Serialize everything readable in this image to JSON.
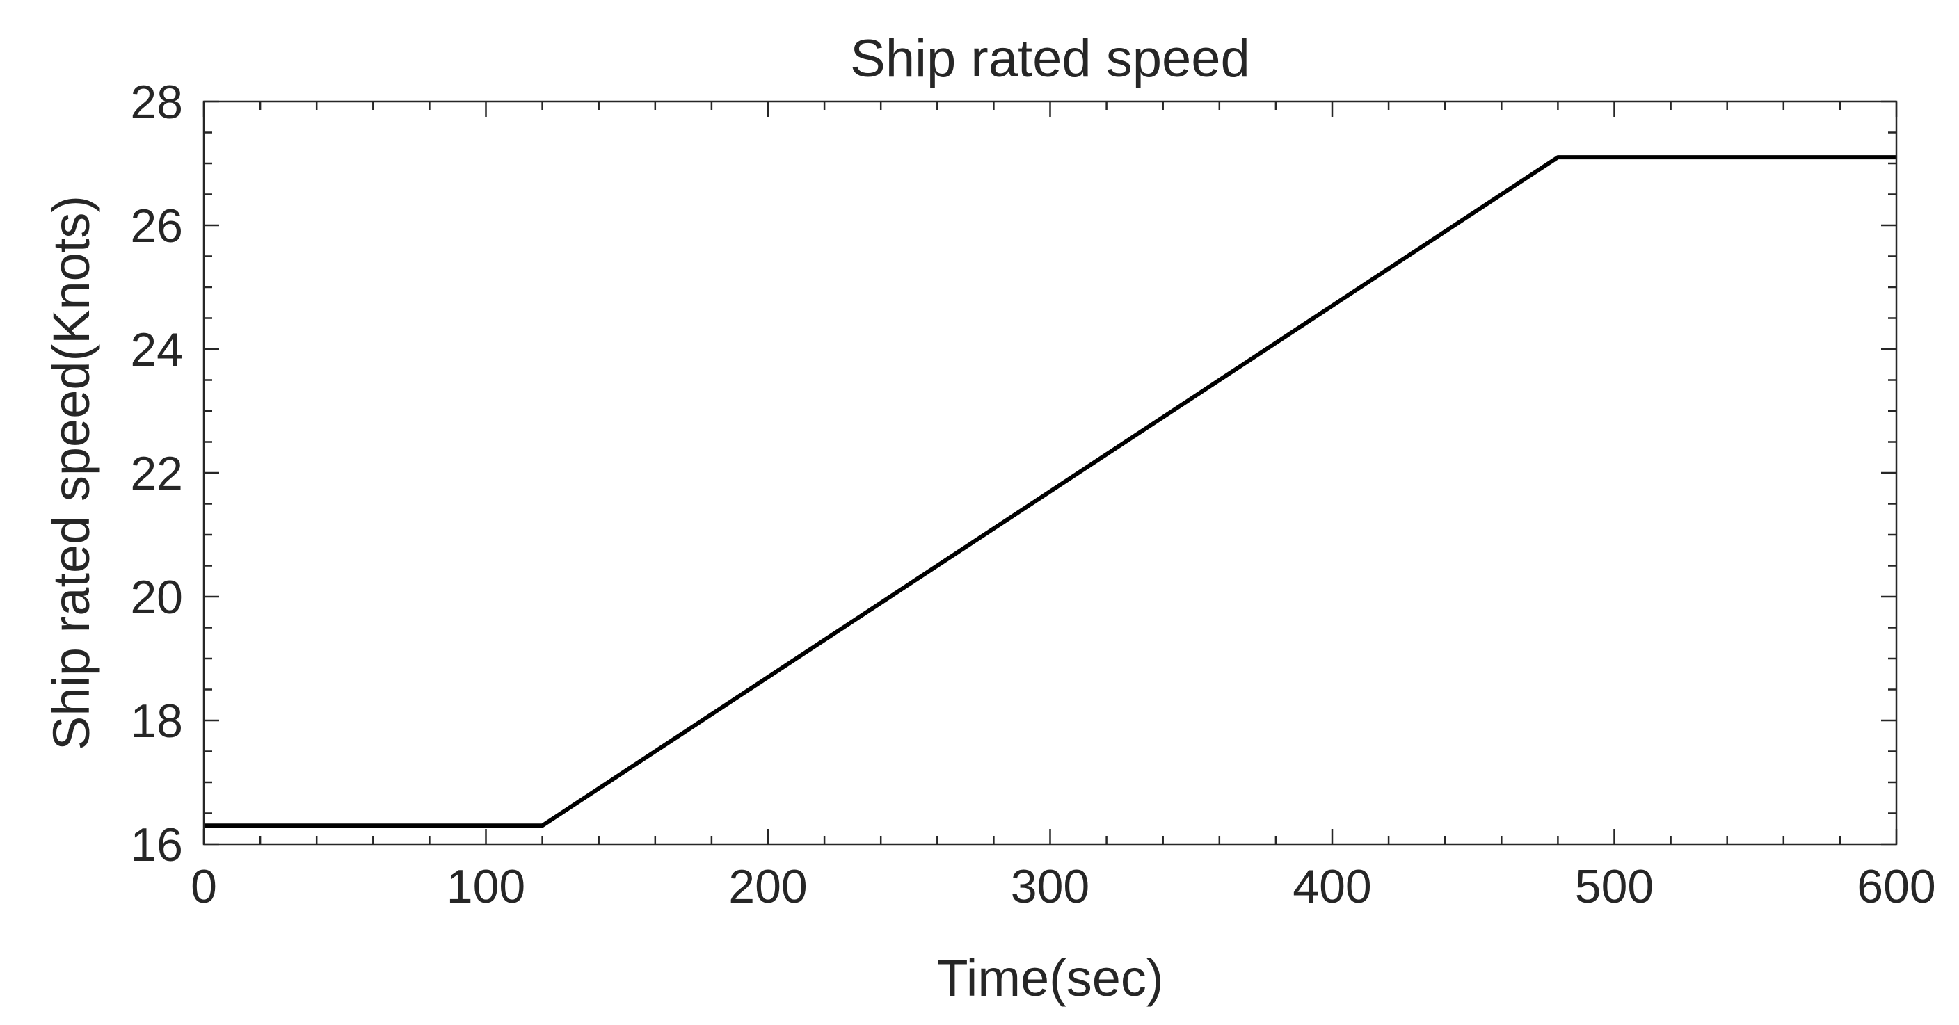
{
  "chart_data": {
    "type": "line",
    "title": "Ship rated speed",
    "xlabel": "Time(sec)",
    "ylabel": "Ship rated speed(Knots)",
    "xlim": [
      0,
      600
    ],
    "ylim": [
      16,
      28
    ],
    "x_ticks": [
      0,
      100,
      200,
      300,
      400,
      500,
      600
    ],
    "y_ticks": [
      16,
      18,
      20,
      22,
      24,
      26,
      28
    ],
    "x_minor_step": 20,
    "y_minor_step": 0.5,
    "grid": false,
    "line_color": "#000000",
    "axis_color": "#262626",
    "series": [
      {
        "x": [
          0,
          120,
          480,
          600
        ],
        "y": [
          16.3,
          16.3,
          27.1,
          27.1
        ]
      }
    ]
  }
}
